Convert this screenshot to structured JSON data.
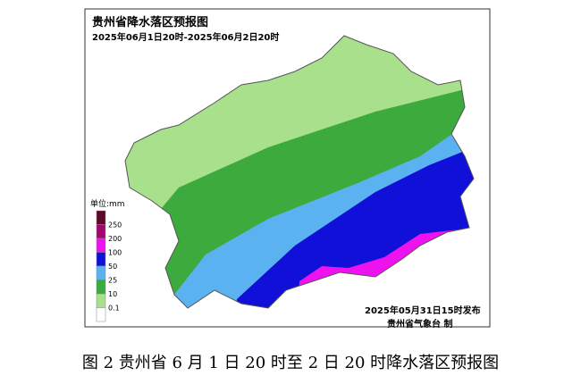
{
  "header": {
    "title": "贵州省降水落区预报图",
    "subtitle": "2025年06月1日20时-2025年06月2日20时"
  },
  "legend": {
    "unit": "单位:mm",
    "colors": [
      "#5c0a2a",
      "#a0086a",
      "#ee12ee",
      "#1010d8",
      "#5ab2f0",
      "#3caa3c",
      "#a8e08c",
      "#ffffff"
    ],
    "labels": [
      "250",
      "200",
      "100",
      "50",
      "25",
      "10",
      "0.1"
    ]
  },
  "footer": {
    "issued": "2025年05月31日15时发布",
    "issuer": "贵州省气象台 制"
  },
  "caption": "图 2 贵州省 6 月 1 日 20 时至 2 日 20 时降水落区预报图"
}
